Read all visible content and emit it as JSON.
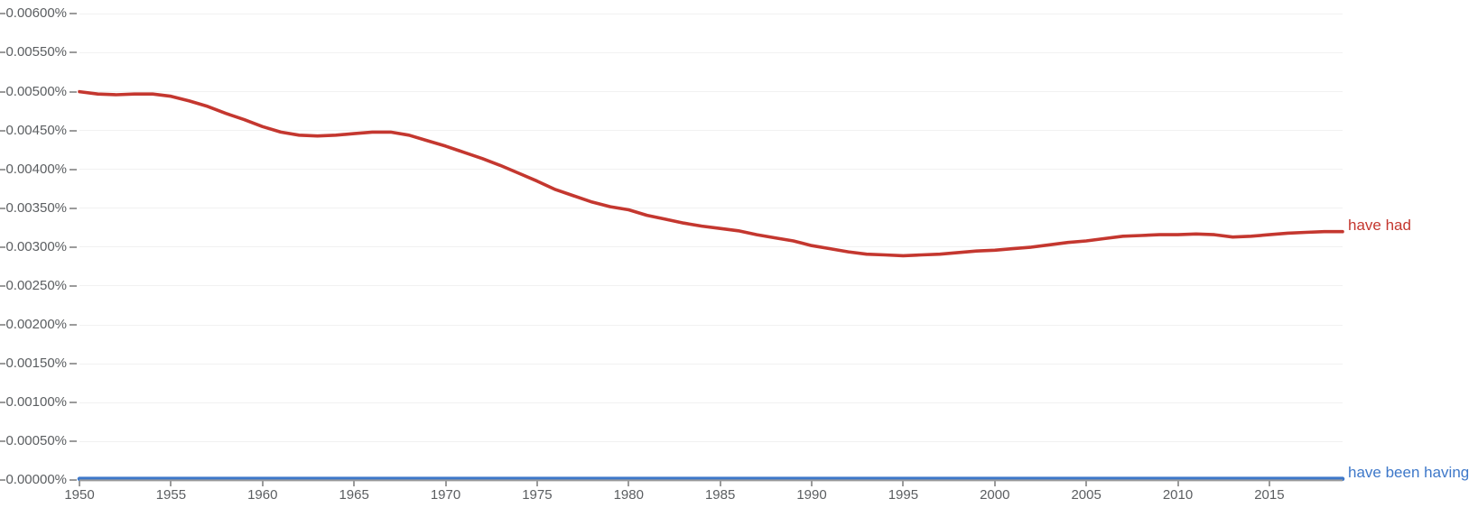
{
  "chart_data": {
    "type": "line",
    "title": "",
    "x_range": [
      1950,
      2019
    ],
    "y_range": [
      0,
      0.006
    ],
    "y_unit": "%",
    "y_tick_step": 0.0005,
    "y_tick_labels": [
      "0.00000%",
      "0.00050%",
      "0.00100%",
      "0.00150%",
      "0.00200%",
      "0.00250%",
      "0.00300%",
      "0.00350%",
      "0.00400%",
      "0.00450%",
      "0.00500%",
      "0.00550%",
      "0.00600%"
    ],
    "x_tick_years": [
      1950,
      1955,
      1960,
      1965,
      1970,
      1975,
      1980,
      1985,
      1990,
      1995,
      2000,
      2005,
      2010,
      2015
    ],
    "x_tick_labels": [
      "1950",
      "1955",
      "1960",
      "1965",
      "1970",
      "1975",
      "1980",
      "1985",
      "1990",
      "1995",
      "2000",
      "2005",
      "2010",
      "2015"
    ],
    "grid": "horizontal-only",
    "legend_position": "line-end-labels-right",
    "years": [
      1950,
      1951,
      1952,
      1953,
      1954,
      1955,
      1956,
      1957,
      1958,
      1959,
      1960,
      1961,
      1962,
      1963,
      1964,
      1965,
      1966,
      1967,
      1968,
      1969,
      1970,
      1971,
      1972,
      1973,
      1974,
      1975,
      1976,
      1977,
      1978,
      1979,
      1980,
      1981,
      1982,
      1983,
      1984,
      1985,
      1986,
      1987,
      1988,
      1989,
      1990,
      1991,
      1992,
      1993,
      1994,
      1995,
      1996,
      1997,
      1998,
      1999,
      2000,
      2001,
      2002,
      2003,
      2004,
      2005,
      2006,
      2007,
      2008,
      2009,
      2010,
      2011,
      2012,
      2013,
      2014,
      2015,
      2016,
      2017,
      2018,
      2019
    ],
    "series": [
      {
        "name": "have had",
        "color": "#c4372f",
        "values": [
          0.005,
          0.00497,
          0.00496,
          0.00497,
          0.00497,
          0.00494,
          0.00488,
          0.00481,
          0.00472,
          0.00464,
          0.00455,
          0.00448,
          0.00444,
          0.00443,
          0.00444,
          0.00446,
          0.00448,
          0.00448,
          0.00444,
          0.00437,
          0.0043,
          0.00422,
          0.00414,
          0.00405,
          0.00395,
          0.00385,
          0.00374,
          0.00366,
          0.00358,
          0.00352,
          0.00348,
          0.00341,
          0.00336,
          0.00331,
          0.00327,
          0.00324,
          0.00321,
          0.00316,
          0.00312,
          0.00308,
          0.00302,
          0.00298,
          0.00294,
          0.00291,
          0.0029,
          0.00289,
          0.0029,
          0.00291,
          0.00293,
          0.00295,
          0.00296,
          0.00298,
          0.003,
          0.00303,
          0.00306,
          0.00308,
          0.00311,
          0.00314,
          0.00315,
          0.00316,
          0.00316,
          0.00317,
          0.00316,
          0.00313,
          0.00314,
          0.00316,
          0.00318,
          0.00319,
          0.0032,
          0.0032
        ]
      },
      {
        "name": "have been having",
        "color": "#3e78c9",
        "values": [
          2e-05,
          2e-05,
          2e-05,
          2e-05,
          2e-05,
          2e-05,
          2e-05,
          2e-05,
          2e-05,
          2e-05,
          2e-05,
          2e-05,
          2e-05,
          2e-05,
          2e-05,
          2e-05,
          2e-05,
          2e-05,
          2e-05,
          2e-05,
          2e-05,
          2e-05,
          2e-05,
          2e-05,
          2e-05,
          2e-05,
          2e-05,
          2e-05,
          2e-05,
          2e-05,
          2e-05,
          2e-05,
          2e-05,
          2e-05,
          2e-05,
          2e-05,
          2e-05,
          2e-05,
          2e-05,
          2e-05,
          2e-05,
          2e-05,
          2e-05,
          2e-05,
          2e-05,
          2e-05,
          2e-05,
          2e-05,
          2e-05,
          2e-05,
          2e-05,
          2e-05,
          2e-05,
          2e-05,
          2e-05,
          2e-05,
          2e-05,
          2e-05,
          2e-05,
          2e-05,
          2e-05,
          2e-05,
          2e-05,
          2e-05,
          2e-05,
          2e-05,
          2e-05,
          2e-05,
          2e-05,
          2e-05
        ]
      }
    ],
    "colors": {
      "axis": "#9b9b9b",
      "gridline": "#f1f1f1",
      "tick_label": "#5b5e61",
      "background": "#ffffff"
    }
  }
}
